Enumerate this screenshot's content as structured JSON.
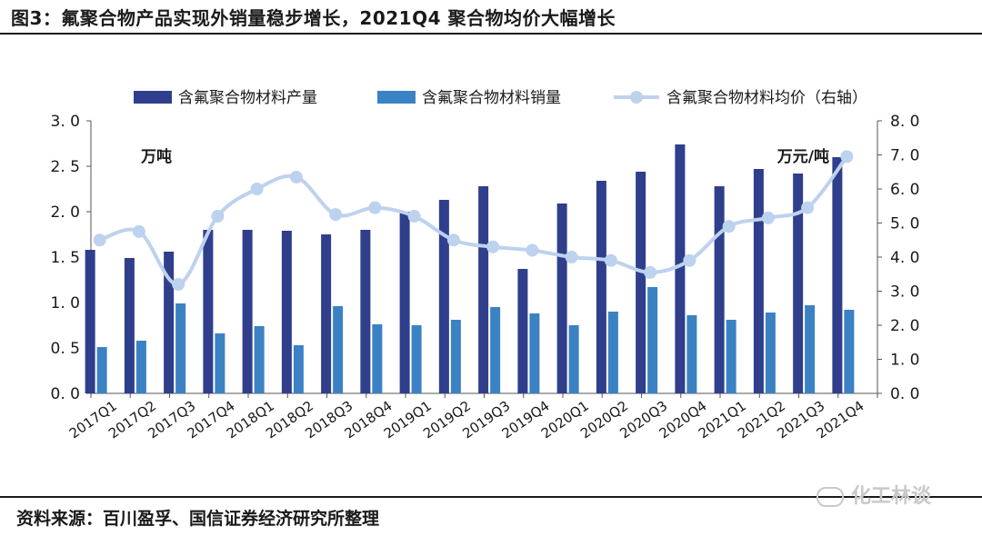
{
  "figure_title": "图3：氟聚合物产品实现外销量稳步增长，2021Q4 聚合物均价大幅增长",
  "source_note": "资料来源：百川盈孚、国信证券经济研究所整理",
  "watermark": "化工林谈",
  "colors": {
    "production": "#2f3f8c",
    "sales": "#3b82c4",
    "price": "#bdd2ee",
    "axis": "#555555"
  },
  "chart_data": {
    "type": "bar",
    "categories": [
      "2017Q1",
      "2017Q2",
      "2017Q3",
      "2017Q4",
      "2018Q1",
      "2018Q2",
      "2018Q3",
      "2018Q4",
      "2019Q1",
      "2019Q2",
      "2019Q3",
      "2019Q4",
      "2020Q1",
      "2020Q2",
      "2020Q3",
      "2020Q4",
      "2021Q1",
      "2021Q2",
      "2021Q3",
      "2021Q4"
    ],
    "series": [
      {
        "name": "含氟聚合物材料产量",
        "kind": "bar",
        "axis": "left",
        "values": [
          1.58,
          1.49,
          1.56,
          1.8,
          1.8,
          1.79,
          1.75,
          1.8,
          2.0,
          2.13,
          2.28,
          1.37,
          2.09,
          2.34,
          2.44,
          2.74,
          2.28,
          2.47,
          2.42,
          2.6
        ]
      },
      {
        "name": "含氟聚合物材料销量",
        "kind": "bar",
        "axis": "left",
        "values": [
          0.51,
          0.58,
          0.99,
          0.66,
          0.74,
          0.53,
          0.96,
          0.76,
          0.75,
          0.81,
          0.95,
          0.88,
          0.75,
          0.9,
          1.17,
          0.86,
          0.81,
          0.89,
          0.97,
          0.92
        ]
      },
      {
        "name": "含氟聚合物材料均价（右轴）",
        "kind": "line",
        "axis": "right",
        "values": [
          4.5,
          4.75,
          3.2,
          5.2,
          6.0,
          6.35,
          5.25,
          5.45,
          5.2,
          4.5,
          4.3,
          4.2,
          4.0,
          3.9,
          3.55,
          3.9,
          4.9,
          5.15,
          5.45,
          6.95
        ]
      }
    ],
    "y_left": {
      "unit": "万吨",
      "ylim": [
        0,
        3.0
      ],
      "ticks": [
        "3. 0",
        "2. 5",
        "2. 0",
        "1. 5",
        "1. 0",
        "0. 5",
        "0. 0"
      ]
    },
    "y_right": {
      "unit": "万元/吨",
      "ylim": [
        0,
        8.0
      ],
      "ticks": [
        "8. 0",
        "7. 0",
        "6. 0",
        "5. 0",
        "4. 0",
        "3. 0",
        "2. 0",
        "1. 0",
        "0. 0"
      ]
    },
    "legend_position": "top"
  }
}
